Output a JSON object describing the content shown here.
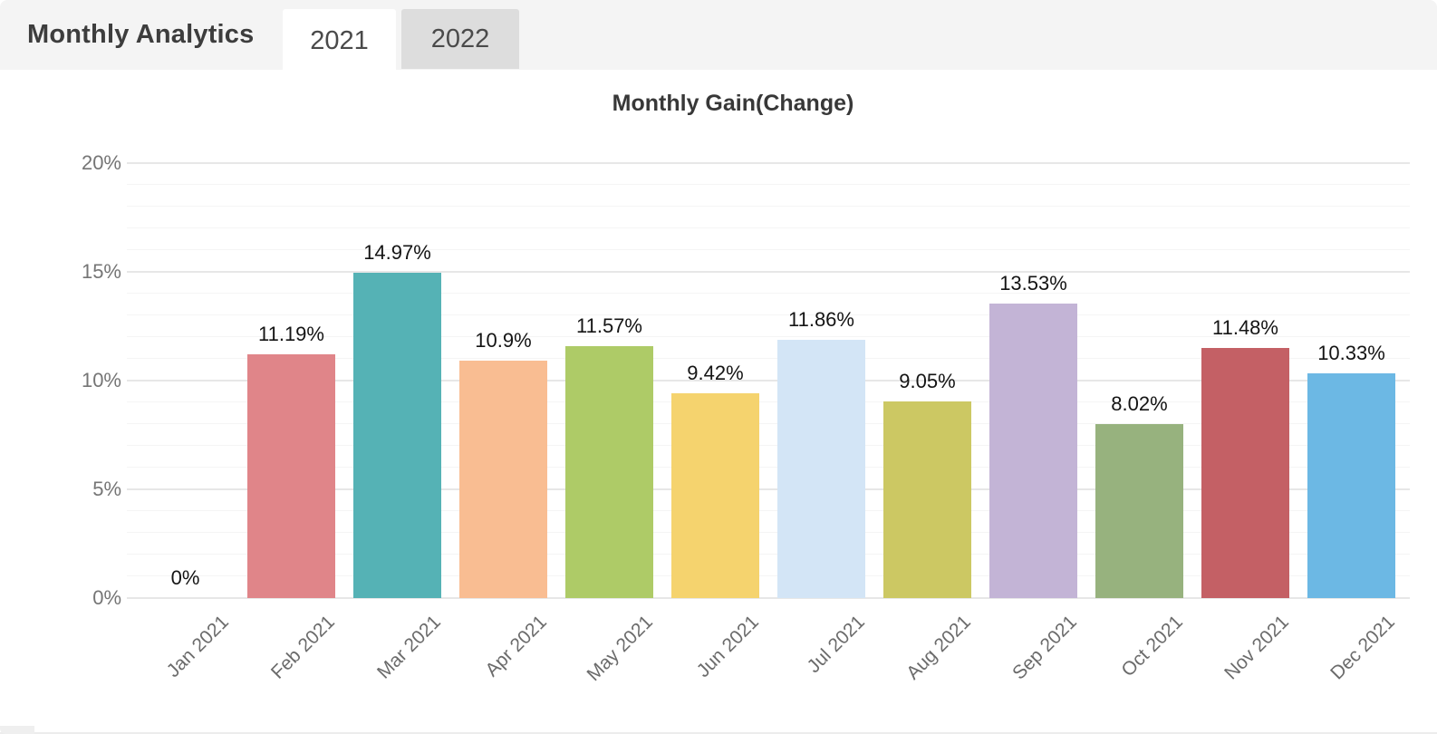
{
  "header": {
    "title": "Monthly Analytics",
    "tabs": [
      {
        "label": "2021",
        "active": true
      },
      {
        "label": "2022",
        "active": false
      }
    ]
  },
  "chart_data": {
    "type": "bar",
    "title": "Monthly Gain(Change)",
    "categories": [
      "Jan 2021",
      "Feb 2021",
      "Mar 2021",
      "Apr 2021",
      "May 2021",
      "Jun 2021",
      "Jul 2021",
      "Aug 2021",
      "Sep 2021",
      "Oct 2021",
      "Nov 2021",
      "Dec 2021"
    ],
    "values": [
      0,
      11.19,
      14.97,
      10.9,
      11.57,
      9.42,
      11.86,
      9.05,
      13.53,
      8.02,
      11.48,
      10.33
    ],
    "value_labels": [
      "0%",
      "11.19%",
      "14.97%",
      "10.9%",
      "11.57%",
      "9.42%",
      "11.86%",
      "9.05%",
      "13.53%",
      "8.02%",
      "11.48%",
      "10.33%"
    ],
    "bar_colors": [
      null,
      "#e08589",
      "#55b2b5",
      "#f9bd92",
      "#aecb67",
      "#f5d36e",
      "#d3e5f6",
      "#ccc863",
      "#c3b4d6",
      "#97b27e",
      "#c46065",
      "#6cb8e4"
    ],
    "xlabel": "",
    "ylabel": "",
    "ylim": [
      0,
      20
    ],
    "yticks": [
      0,
      5,
      10,
      15,
      20
    ],
    "ytick_labels": [
      "0%",
      "5%",
      "10%",
      "15%",
      "20%"
    ],
    "minor_tick_step": 1,
    "grid": true,
    "legend": false,
    "x_label_rotation": -45
  }
}
